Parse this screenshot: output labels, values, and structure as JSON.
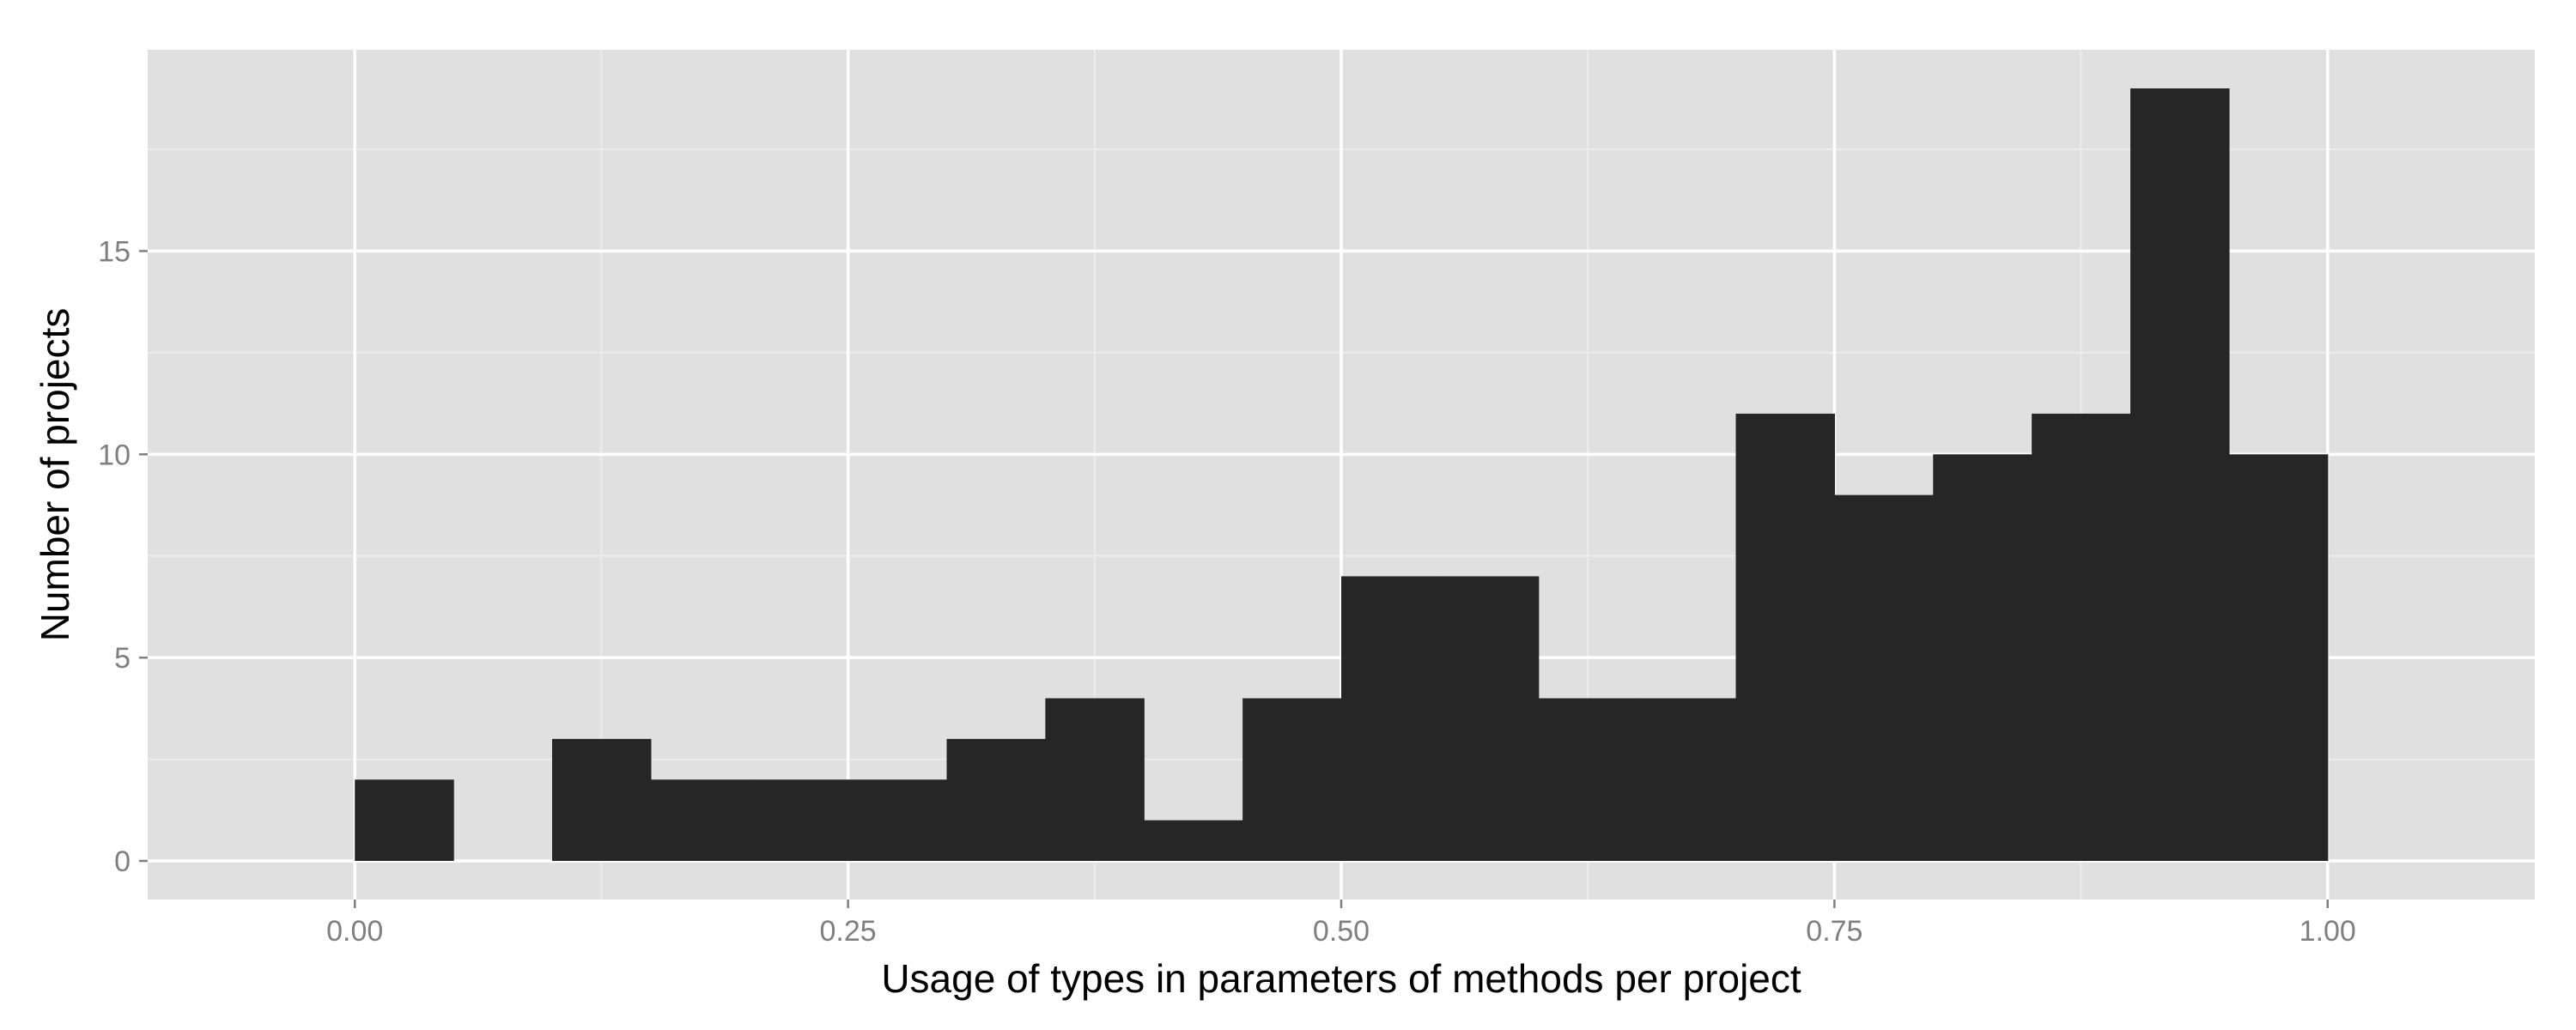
{
  "chart_data": {
    "type": "bar",
    "xlabel": "Usage of types in parameters of methods per project",
    "ylabel": "Number of projects",
    "xlim": [
      -0.105,
      1.105
    ],
    "ylim": [
      -0.95,
      19.95
    ],
    "x_ticks": [
      0.0,
      0.25,
      0.5,
      0.75,
      1.0
    ],
    "x_tick_labels": [
      "0.00",
      "0.25",
      "0.50",
      "0.75",
      "1.00"
    ],
    "y_ticks": [
      0,
      5,
      10,
      15
    ],
    "y_tick_labels": [
      "0",
      "5",
      "10",
      "15"
    ],
    "bin_width": 0.05,
    "bins": [
      {
        "x0": 0.0,
        "x1": 0.05,
        "count": 2
      },
      {
        "x0": 0.05,
        "x1": 0.1,
        "count": 0
      },
      {
        "x0": 0.1,
        "x1": 0.15,
        "count": 3
      },
      {
        "x0": 0.15,
        "x1": 0.2,
        "count": 2
      },
      {
        "x0": 0.2,
        "x1": 0.25,
        "count": 2
      },
      {
        "x0": 0.25,
        "x1": 0.3,
        "count": 2
      },
      {
        "x0": 0.3,
        "x1": 0.35,
        "count": 3
      },
      {
        "x0": 0.35,
        "x1": 0.4,
        "count": 4
      },
      {
        "x0": 0.4,
        "x1": 0.45,
        "count": 1
      },
      {
        "x0": 0.45,
        "x1": 0.5,
        "count": 4
      },
      {
        "x0": 0.5,
        "x1": 0.55,
        "count": 7
      },
      {
        "x0": 0.55,
        "x1": 0.6,
        "count": 7
      },
      {
        "x0": 0.6,
        "x1": 0.65,
        "count": 4
      },
      {
        "x0": 0.65,
        "x1": 0.7,
        "count": 4
      },
      {
        "x0": 0.7,
        "x1": 0.75,
        "count": 11
      },
      {
        "x0": 0.75,
        "x1": 0.8,
        "count": 9
      },
      {
        "x0": 0.8,
        "x1": 0.85,
        "count": 10
      },
      {
        "x0": 0.85,
        "x1": 0.9,
        "count": 11
      },
      {
        "x0": 0.9,
        "x1": 0.95,
        "count": 19
      },
      {
        "x0": 0.95,
        "x1": 1.0,
        "count": 10
      }
    ],
    "grid": true,
    "legend": "none",
    "colors": {
      "panel_background": "#e0e0e0",
      "grid_major": "#ffffff",
      "grid_minor": "#ececec",
      "bar_fill": "#262626",
      "tick_label": "#7f7f7f",
      "tick_mark": "#7f7f7f",
      "axis_title": "#000000"
    }
  }
}
